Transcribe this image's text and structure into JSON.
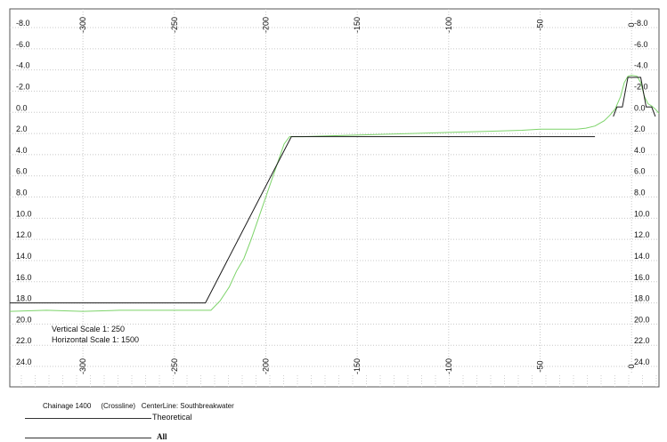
{
  "chart_data": {
    "type": "line",
    "title": "",
    "xlabel": "",
    "ylabel": "",
    "xlim": [
      -340,
      15
    ],
    "ylim": [
      25.0,
      -9.0
    ],
    "x_ticks": [
      -300,
      -250,
      -200,
      -150,
      -100,
      -50,
      0
    ],
    "y_ticks": [
      -8.0,
      -6.0,
      -4.0,
      -2.0,
      0.0,
      2.0,
      4.0,
      6.0,
      8.0,
      10.0,
      12.0,
      14.0,
      16.0,
      18.0,
      20.0,
      22.0,
      24.0
    ],
    "y_tick_labels": [
      "-8.0",
      "-6.0",
      "-4.0",
      "-2.0",
      "0.0",
      "2.0",
      "4.0",
      "6.0",
      "8.0",
      "10.0",
      "12.0",
      "14.0",
      "16.0",
      "18.0",
      "20.0",
      "22.0",
      "24.0"
    ],
    "grid": true,
    "series": [
      {
        "name": "Theoretical",
        "color": "#1a1a1a",
        "points": [
          [
            -340,
            18.0
          ],
          [
            -233,
            18.0
          ],
          [
            -186,
            2.3
          ],
          [
            -20,
            2.3
          ]
        ],
        "breakwater": [
          [
            -10,
            0.4
          ],
          [
            -8,
            -0.5
          ],
          [
            -5,
            -0.5
          ],
          [
            -2,
            -3.3
          ],
          [
            5,
            -3.3
          ],
          [
            8,
            -0.5
          ],
          [
            11,
            -0.5
          ],
          [
            13,
            0.4
          ]
        ]
      },
      {
        "name": "All",
        "color": "#7dd36a",
        "points": [
          [
            -340,
            18.8
          ],
          [
            -320,
            18.7
          ],
          [
            -300,
            18.8
          ],
          [
            -280,
            18.7
          ],
          [
            -260,
            18.7
          ],
          [
            -240,
            18.7
          ],
          [
            -230,
            18.7
          ],
          [
            -225,
            17.8
          ],
          [
            -220,
            16.5
          ],
          [
            -216,
            15.0
          ],
          [
            -212,
            13.8
          ],
          [
            -208,
            12.0
          ],
          [
            -204,
            10.0
          ],
          [
            -200,
            8.0
          ],
          [
            -196,
            6.0
          ],
          [
            -193,
            4.5
          ],
          [
            -190,
            3.0
          ],
          [
            -187,
            2.3
          ],
          [
            -180,
            2.3
          ],
          [
            -160,
            2.2
          ],
          [
            -140,
            2.1
          ],
          [
            -120,
            2.0
          ],
          [
            -100,
            1.9
          ],
          [
            -80,
            1.8
          ],
          [
            -60,
            1.7
          ],
          [
            -50,
            1.6
          ],
          [
            -40,
            1.6
          ],
          [
            -30,
            1.6
          ],
          [
            -25,
            1.5
          ],
          [
            -20,
            1.3
          ],
          [
            -15,
            0.8
          ],
          [
            -12,
            0.3
          ],
          [
            -9,
            -0.3
          ],
          [
            -6,
            -1.5
          ],
          [
            -4,
            -2.8
          ],
          [
            -2,
            -3.4
          ],
          [
            0,
            -3.5
          ],
          [
            3,
            -3.4
          ],
          [
            5,
            -2.8
          ],
          [
            7,
            -1.5
          ],
          [
            9,
            -0.8
          ],
          [
            11,
            -0.6
          ],
          [
            13,
            -0.3
          ],
          [
            15,
            0.1
          ]
        ]
      }
    ],
    "annotations": [
      "Vertical Scale 1: 250",
      "Horizontal Scale 1: 1500"
    ]
  },
  "legend": {
    "caption": "Chainage 1400     (Crossline)   CenterLine: Southbreakwater",
    "items": [
      {
        "label": "Theoretical"
      },
      {
        "label": "All"
      }
    ]
  }
}
